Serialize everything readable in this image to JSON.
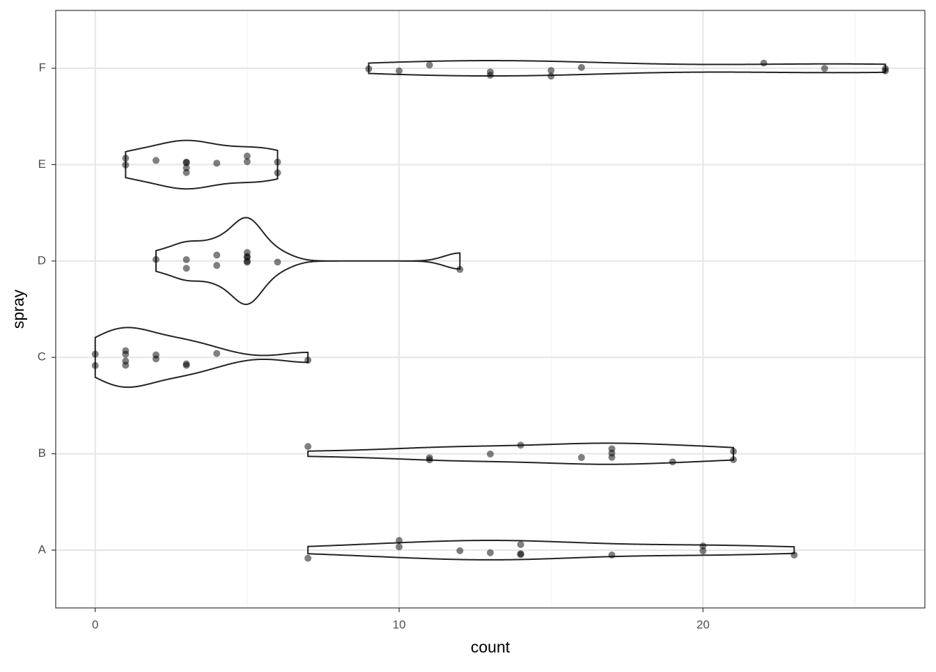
{
  "chart_data": {
    "type": "violin",
    "x_label": "count",
    "y_label": "spray",
    "groups": [
      {
        "category": "A",
        "values": [
          10,
          7,
          20,
          14,
          14,
          12,
          10,
          23,
          17,
          20,
          14,
          13
        ]
      },
      {
        "category": "B",
        "values": [
          11,
          17,
          21,
          11,
          16,
          14,
          17,
          17,
          19,
          21,
          7,
          13
        ]
      },
      {
        "category": "C",
        "values": [
          0,
          1,
          7,
          2,
          3,
          1,
          2,
          1,
          3,
          0,
          1,
          4
        ]
      },
      {
        "category": "D",
        "values": [
          3,
          5,
          12,
          6,
          4,
          3,
          5,
          5,
          5,
          5,
          2,
          4
        ]
      },
      {
        "category": "E",
        "values": [
          3,
          5,
          3,
          5,
          3,
          6,
          1,
          1,
          3,
          2,
          6,
          4
        ]
      },
      {
        "category": "F",
        "values": [
          11,
          9,
          15,
          22,
          15,
          16,
          13,
          10,
          26,
          26,
          24,
          13
        ]
      }
    ],
    "xlim": [
      -1.3,
      27.3
    ],
    "xticks": [
      0,
      10,
      20
    ],
    "xminor_ticks": [
      5,
      15,
      25
    ],
    "grid": true,
    "outline_color": "#222222",
    "point_color": "#000000"
  }
}
